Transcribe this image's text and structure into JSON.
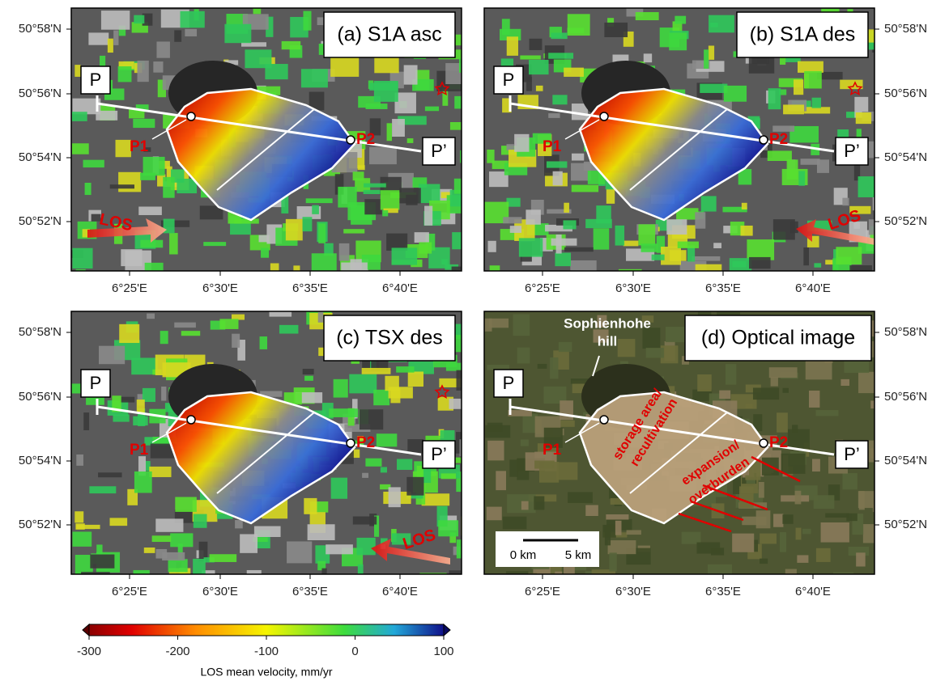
{
  "panels": [
    {
      "title": "(a) S1A asc",
      "p": "P",
      "p_prime": "P’",
      "p1": "P1",
      "p2": "P2",
      "los": "LOS"
    },
    {
      "title": "(b) S1A des",
      "p": "P",
      "p_prime": "P’",
      "p1": "P1",
      "p2": "P2",
      "los": "LOS"
    },
    {
      "title": "(c) TSX des",
      "p": "P",
      "p_prime": "P’",
      "p1": "P1",
      "p2": "P2",
      "los": "LOS"
    },
    {
      "title": "(d) Optical image",
      "p": "P",
      "p_prime": "P’",
      "p1": "P1",
      "p2": "P2",
      "annotations": [
        "Sophienhohe",
        "hill",
        "storage area/",
        "recultivation",
        "expansion/",
        "overburden"
      ],
      "scale_bar": [
        "0 km",
        "5 km"
      ]
    }
  ],
  "lat_ticks": [
    "50°58'N",
    "50°56'N",
    "50°54'N",
    "50°52'N"
  ],
  "lon_ticks": [
    "6°25'E",
    "6°30'E",
    "6°35'E",
    "6°40'E"
  ],
  "colorbar": {
    "range": [
      -300,
      100
    ],
    "ticks": [
      -300,
      -200,
      -100,
      0,
      100
    ],
    "label": "LOS mean velocity, mm/yr"
  }
}
